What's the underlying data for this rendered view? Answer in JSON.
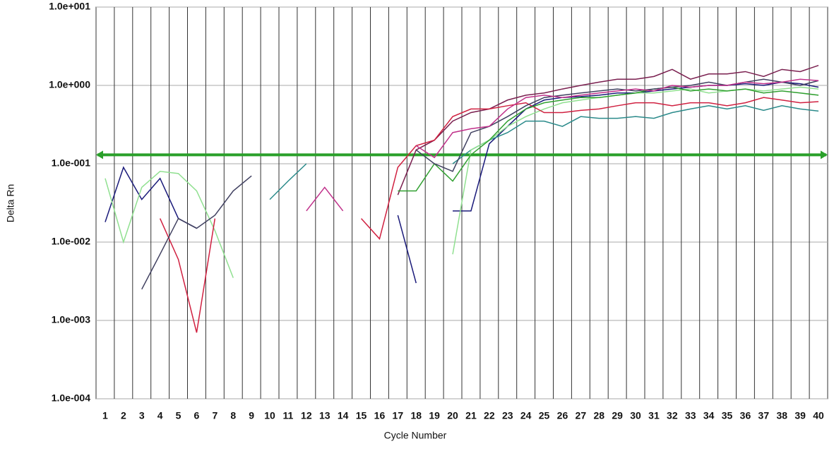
{
  "chart_data": {
    "type": "line",
    "y_label": "Delta Rn",
    "x_label": "Cycle Number",
    "log_y": true,
    "xlim": [
      0.5,
      40.5
    ],
    "xticks": [
      1,
      2,
      3,
      4,
      5,
      6,
      7,
      8,
      9,
      10,
      11,
      12,
      13,
      14,
      15,
      16,
      17,
      18,
      19,
      20,
      21,
      22,
      23,
      24,
      25,
      26,
      27,
      28,
      29,
      30,
      31,
      32,
      33,
      34,
      35,
      36,
      37,
      38,
      39,
      40
    ],
    "ylim": [
      0.0001,
      10
    ],
    "yticks": [
      {
        "value": 0.0001,
        "label": "1.0e-004"
      },
      {
        "value": 0.001,
        "label": "1.0e-003"
      },
      {
        "value": 0.01,
        "label": "1.0e-002"
      },
      {
        "value": 0.1,
        "label": "1.0e-001"
      },
      {
        "value": 1,
        "label": "1.0e+000"
      },
      {
        "value": 10,
        "label": "1.0e+001"
      }
    ],
    "grid": true,
    "threshold": {
      "value": 0.13,
      "color": "#2aa02a"
    },
    "x": [
      1,
      2,
      3,
      4,
      5,
      6,
      7,
      8,
      9,
      10,
      11,
      12,
      13,
      14,
      15,
      16,
      17,
      18,
      19,
      20,
      21,
      22,
      23,
      24,
      25,
      26,
      27,
      28,
      29,
      30,
      31,
      32,
      33,
      34,
      35,
      36,
      37,
      38,
      39,
      40
    ],
    "series": [
      {
        "color": "#7a1f4f",
        "values": [
          null,
          null,
          null,
          null,
          null,
          null,
          null,
          null,
          null,
          null,
          null,
          null,
          null,
          null,
          null,
          null,
          0.04,
          0.15,
          0.2,
          0.35,
          0.45,
          0.5,
          0.65,
          0.75,
          0.8,
          0.9,
          1.0,
          1.1,
          1.2,
          1.2,
          1.3,
          1.6,
          1.2,
          1.4,
          1.4,
          1.5,
          1.3,
          1.6,
          1.5,
          1.8
        ]
      },
      {
        "color": "#1a1a7a",
        "values": [
          0.018,
          0.09,
          0.035,
          0.065,
          0.02,
          0.015,
          null,
          null,
          null,
          null,
          null,
          null,
          null,
          null,
          null,
          null,
          0.022,
          0.003,
          null,
          0.025,
          0.025,
          0.18,
          0.3,
          0.5,
          0.65,
          0.7,
          0.72,
          0.75,
          0.8,
          0.8,
          0.85,
          0.9,
          0.95,
          1.0,
          1.0,
          1.05,
          1.0,
          1.1,
          1.05,
          0.95
        ]
      },
      {
        "color": "#2a8a8a",
        "values": [
          null,
          null,
          null,
          null,
          null,
          null,
          null,
          null,
          null,
          0.035,
          0.06,
          0.1,
          null,
          null,
          null,
          null,
          null,
          null,
          null,
          0.1,
          0.15,
          0.2,
          0.25,
          0.35,
          0.35,
          0.3,
          0.4,
          0.38,
          0.38,
          0.4,
          0.38,
          0.45,
          0.5,
          0.55,
          0.5,
          0.55,
          0.48,
          0.55,
          0.5,
          0.47
        ]
      },
      {
        "color": "#90e090",
        "values": [
          0.065,
          0.01,
          0.05,
          0.08,
          0.075,
          0.045,
          0.014,
          0.0035,
          null,
          null,
          null,
          null,
          null,
          null,
          null,
          null,
          null,
          null,
          null,
          0.007,
          0.15,
          0.2,
          0.3,
          0.4,
          0.5,
          0.6,
          0.65,
          0.7,
          0.75,
          0.8,
          0.8,
          0.85,
          0.9,
          0.8,
          0.85,
          0.9,
          0.85,
          0.9,
          0.95,
          0.9
        ]
      },
      {
        "color": "#d02040",
        "values": [
          null,
          null,
          null,
          0.02,
          0.006,
          0.0007,
          0.02,
          null,
          null,
          null,
          null,
          null,
          null,
          null,
          0.02,
          0.011,
          0.09,
          0.17,
          0.2,
          0.4,
          0.5,
          0.5,
          0.55,
          0.6,
          0.45,
          0.45,
          0.48,
          0.5,
          0.55,
          0.6,
          0.6,
          0.55,
          0.6,
          0.6,
          0.55,
          0.6,
          0.7,
          0.65,
          0.6,
          0.62
        ]
      },
      {
        "color": "#30a030",
        "values": [
          null,
          null,
          null,
          null,
          null,
          null,
          null,
          null,
          null,
          null,
          null,
          null,
          null,
          null,
          null,
          null,
          0.045,
          0.045,
          0.1,
          0.06,
          0.13,
          0.2,
          0.35,
          0.5,
          0.6,
          0.65,
          0.7,
          0.7,
          0.75,
          0.8,
          0.9,
          0.95,
          0.85,
          0.9,
          0.85,
          0.9,
          0.8,
          0.85,
          0.8,
          0.75
        ]
      },
      {
        "color": "#404060",
        "values": [
          null,
          null,
          0.0025,
          0.007,
          0.02,
          0.015,
          0.022,
          0.045,
          0.07,
          null,
          null,
          null,
          null,
          null,
          null,
          null,
          null,
          0.15,
          0.1,
          0.08,
          0.25,
          0.3,
          0.4,
          0.55,
          0.7,
          0.75,
          0.8,
          0.85,
          0.9,
          0.85,
          0.9,
          0.95,
          1.0,
          1.1,
          1.0,
          1.1,
          1.2,
          1.1,
          1.0,
          1.15
        ]
      },
      {
        "color": "#c0308a",
        "values": [
          null,
          null,
          null,
          null,
          null,
          null,
          null,
          null,
          null,
          null,
          null,
          0.025,
          0.05,
          0.025,
          null,
          null,
          null,
          0.17,
          0.12,
          0.25,
          0.28,
          0.3,
          0.5,
          0.7,
          0.75,
          0.7,
          0.75,
          0.8,
          0.85,
          0.9,
          0.85,
          1.0,
          0.95,
          1.0,
          1.0,
          1.1,
          1.05,
          1.1,
          1.2,
          1.15
        ]
      }
    ]
  }
}
